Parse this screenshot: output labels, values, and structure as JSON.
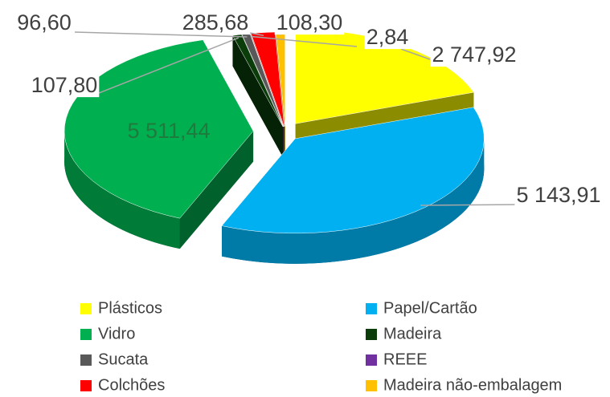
{
  "chart_data": {
    "type": "pie",
    "categories": [
      "Plásticos",
      "Papel/Cartão",
      "Vidro",
      "Madeira",
      "Sucata",
      "REEE",
      "Colchões",
      "Madeira não-embalagem"
    ],
    "values": [
      2747.92,
      5143.91,
      5511.44,
      107.8,
      96.6,
      2.84,
      285.68,
      108.3
    ],
    "value_labels": [
      "2 747,92",
      "5 143,91",
      "5 511,44",
      "107,80",
      "96,60",
      "2,84",
      "285,68",
      "108,30"
    ],
    "colors": [
      "#ffff00",
      "#00b0f0",
      "#00b050",
      "#0b3d0b",
      "#595959",
      "#7030a0",
      "#ff0000",
      "#ffc000"
    ]
  }
}
